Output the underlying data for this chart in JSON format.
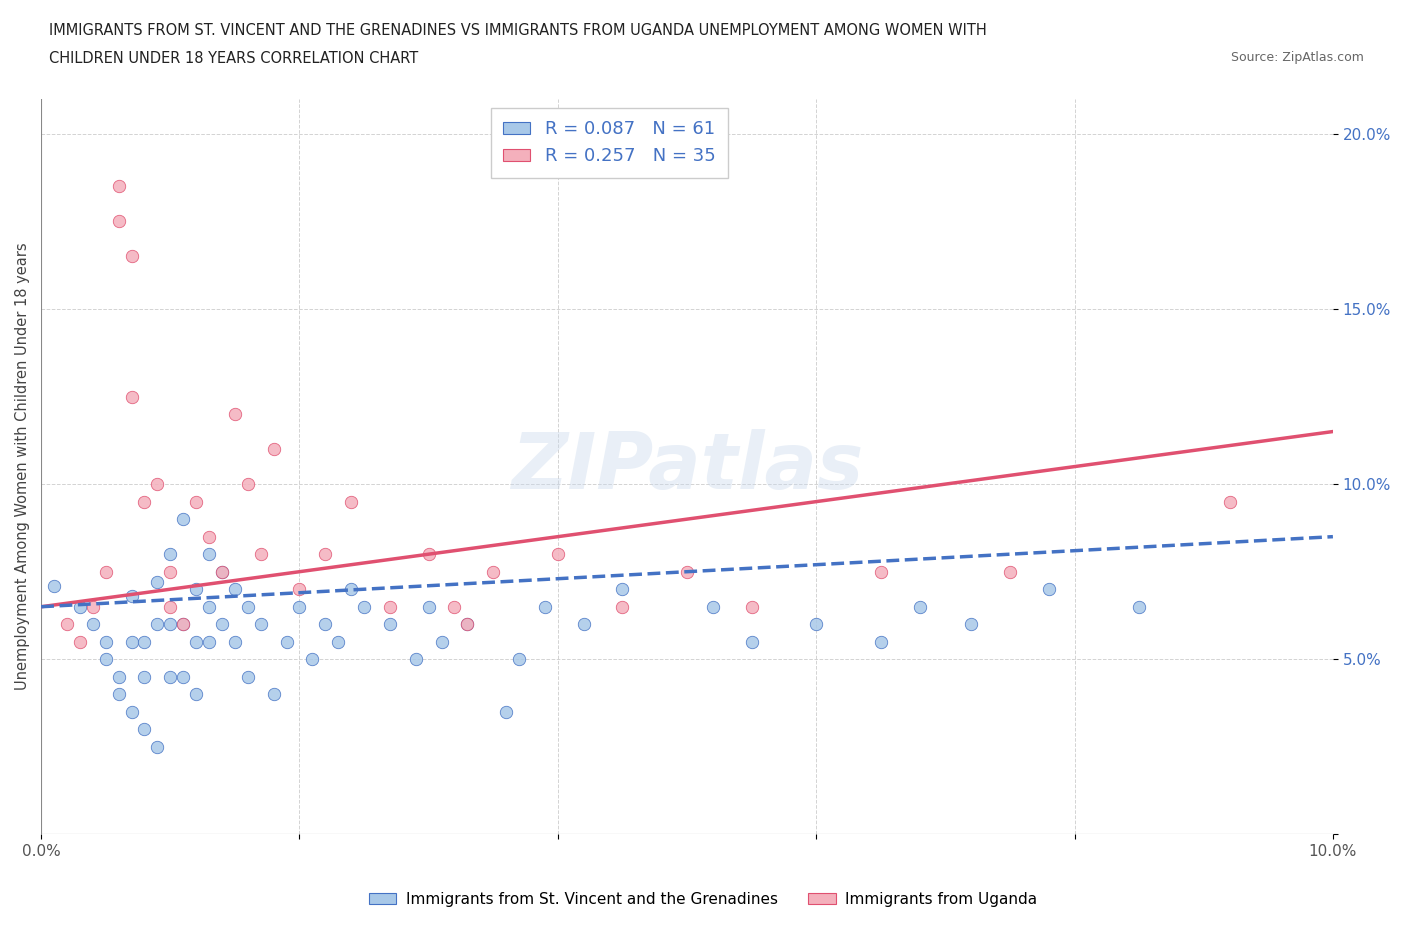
{
  "title_line1": "IMMIGRANTS FROM ST. VINCENT AND THE GRENADINES VS IMMIGRANTS FROM UGANDA UNEMPLOYMENT AMONG WOMEN WITH",
  "title_line2": "CHILDREN UNDER 18 YEARS CORRELATION CHART",
  "source": "Source: ZipAtlas.com",
  "ylabel": "Unemployment Among Women with Children Under 18 years",
  "xlim": [
    0.0,
    0.1
  ],
  "ylim": [
    0.0,
    0.21
  ],
  "color_blue": "#a8c8e8",
  "color_pink": "#f4b0bc",
  "color_blue_line": "#4472c4",
  "color_pink_line": "#e05070",
  "R_blue": 0.087,
  "N_blue": 61,
  "R_pink": 0.257,
  "N_pink": 35,
  "legend_label_blue": "Immigrants from St. Vincent and the Grenadines",
  "legend_label_pink": "Immigrants from Uganda",
  "watermark": "ZIPatlas",
  "blue_scatter_x": [
    0.001,
    0.003,
    0.004,
    0.005,
    0.005,
    0.006,
    0.006,
    0.007,
    0.007,
    0.007,
    0.008,
    0.008,
    0.008,
    0.009,
    0.009,
    0.009,
    0.01,
    0.01,
    0.01,
    0.011,
    0.011,
    0.011,
    0.012,
    0.012,
    0.012,
    0.013,
    0.013,
    0.013,
    0.014,
    0.014,
    0.015,
    0.015,
    0.016,
    0.016,
    0.017,
    0.018,
    0.019,
    0.02,
    0.021,
    0.022,
    0.023,
    0.024,
    0.025,
    0.027,
    0.029,
    0.03,
    0.031,
    0.033,
    0.036,
    0.037,
    0.039,
    0.042,
    0.045,
    0.052,
    0.055,
    0.06,
    0.065,
    0.068,
    0.072,
    0.078,
    0.085
  ],
  "blue_scatter_y": [
    0.071,
    0.065,
    0.06,
    0.055,
    0.05,
    0.045,
    0.04,
    0.068,
    0.055,
    0.035,
    0.055,
    0.045,
    0.03,
    0.072,
    0.06,
    0.025,
    0.08,
    0.06,
    0.045,
    0.09,
    0.06,
    0.045,
    0.07,
    0.055,
    0.04,
    0.08,
    0.065,
    0.055,
    0.075,
    0.06,
    0.07,
    0.055,
    0.065,
    0.045,
    0.06,
    0.04,
    0.055,
    0.065,
    0.05,
    0.06,
    0.055,
    0.07,
    0.065,
    0.06,
    0.05,
    0.065,
    0.055,
    0.06,
    0.035,
    0.05,
    0.065,
    0.06,
    0.07,
    0.065,
    0.055,
    0.06,
    0.055,
    0.065,
    0.06,
    0.07,
    0.065
  ],
  "pink_scatter_x": [
    0.002,
    0.003,
    0.004,
    0.005,
    0.006,
    0.006,
    0.007,
    0.007,
    0.008,
    0.009,
    0.01,
    0.01,
    0.011,
    0.012,
    0.013,
    0.014,
    0.015,
    0.016,
    0.017,
    0.018,
    0.02,
    0.022,
    0.024,
    0.027,
    0.03,
    0.032,
    0.033,
    0.035,
    0.04,
    0.045,
    0.05,
    0.055,
    0.065,
    0.075,
    0.092
  ],
  "pink_scatter_y": [
    0.06,
    0.055,
    0.065,
    0.075,
    0.185,
    0.175,
    0.165,
    0.125,
    0.095,
    0.1,
    0.075,
    0.065,
    0.06,
    0.095,
    0.085,
    0.075,
    0.12,
    0.1,
    0.08,
    0.11,
    0.07,
    0.08,
    0.095,
    0.065,
    0.08,
    0.065,
    0.06,
    0.075,
    0.08,
    0.065,
    0.075,
    0.065,
    0.075,
    0.075,
    0.095
  ]
}
